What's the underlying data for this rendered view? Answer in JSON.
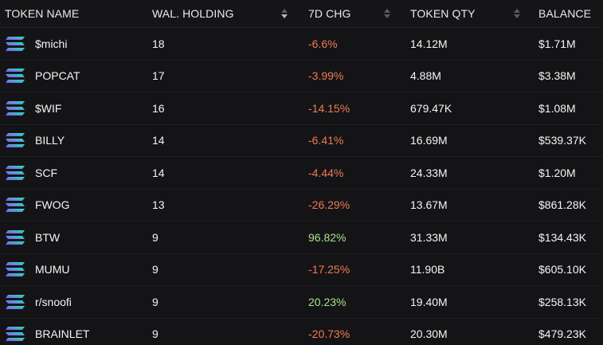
{
  "columns": {
    "token_name": "TOKEN NAME",
    "wal_holding": "WAL. HOLDING",
    "chg_7d": "7D CHG",
    "token_qty": "TOKEN QTY",
    "balance": "BALANCE"
  },
  "icon": "solana-logo-icon",
  "colors": {
    "background": "#131316",
    "negative": "#f07a52",
    "positive": "#a7e28a",
    "text": "#f5f5f5"
  },
  "rows": [
    {
      "name": "$michi",
      "holding": "18",
      "chg": "-6.6%",
      "trend": "neg",
      "qty": "14.12M",
      "balance": "$1.71M"
    },
    {
      "name": "POPCAT",
      "holding": "17",
      "chg": "-3.99%",
      "trend": "neg",
      "qty": "4.88M",
      "balance": "$3.38M"
    },
    {
      "name": "$WIF",
      "holding": "16",
      "chg": "-14.15%",
      "trend": "neg",
      "qty": "679.47K",
      "balance": "$1.08M"
    },
    {
      "name": "BILLY",
      "holding": "14",
      "chg": "-6.41%",
      "trend": "neg",
      "qty": "16.69M",
      "balance": "$539.37K"
    },
    {
      "name": "SCF",
      "holding": "14",
      "chg": "-4.44%",
      "trend": "neg",
      "qty": "24.33M",
      "balance": "$1.20M"
    },
    {
      "name": "FWOG",
      "holding": "13",
      "chg": "-26.29%",
      "trend": "neg",
      "qty": "13.67M",
      "balance": "$861.28K"
    },
    {
      "name": "BTW",
      "holding": "9",
      "chg": "96.82%",
      "trend": "pos",
      "qty": "31.33M",
      "balance": "$134.43K"
    },
    {
      "name": "MUMU",
      "holding": "9",
      "chg": "-17.25%",
      "trend": "neg",
      "qty": "11.90B",
      "balance": "$605.10K"
    },
    {
      "name": "r/snoofi",
      "holding": "9",
      "chg": "20.23%",
      "trend": "pos",
      "qty": "19.40M",
      "balance": "$258.13K"
    },
    {
      "name": "BRAINLET",
      "holding": "9",
      "chg": "-20.73%",
      "trend": "neg",
      "qty": "20.30M",
      "balance": "$479.23K"
    }
  ]
}
